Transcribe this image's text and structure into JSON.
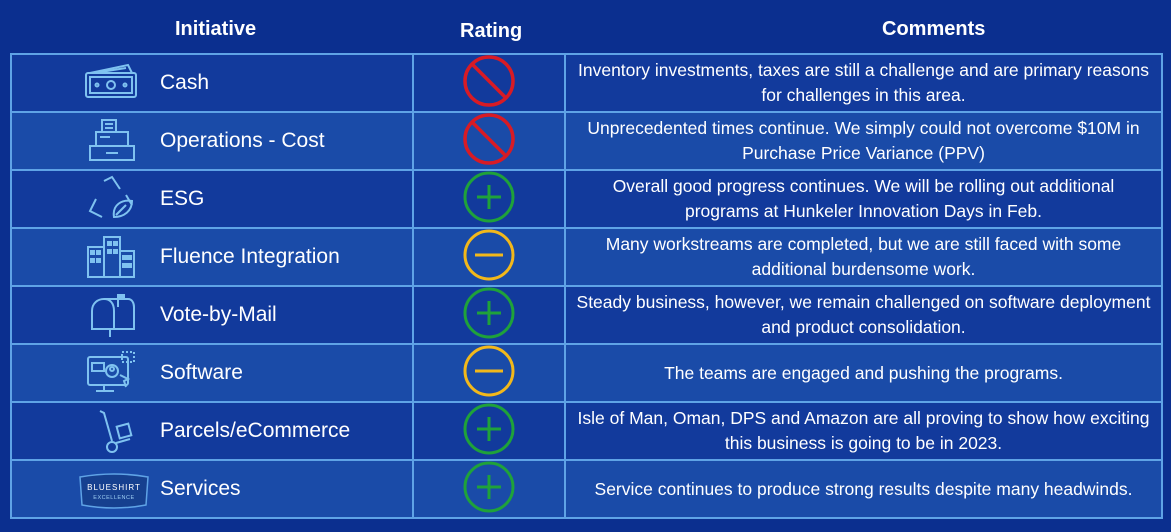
{
  "header": {
    "initiative": "Initiative",
    "rating": "Rating",
    "comments": "Comments"
  },
  "colors": {
    "red": "#d81b25",
    "green": "#1fa23a",
    "yellow": "#f2b81b",
    "line": "#5fa3e6"
  },
  "rows": [
    {
      "initiative": "Cash",
      "icon": "cash-icon",
      "rating": "stop",
      "comment": "Inventory investments, taxes are still a challenge and are primary reasons for challenges in this area."
    },
    {
      "initiative": "Operations - Cost",
      "icon": "cash-register-icon",
      "rating": "stop",
      "comment": "Unprecedented times continue.  We simply could not overcome $10M in Purchase Price Variance (PPV)"
    },
    {
      "initiative": "ESG",
      "icon": "recycle-leaf-icon",
      "rating": "plus",
      "comment": "Overall good progress continues.  We will be rolling out additional programs at Hunkeler Innovation Days in Feb."
    },
    {
      "initiative": "Fluence Integration",
      "icon": "buildings-icon",
      "rating": "minus",
      "comment": "Many workstreams are completed, but we are still faced with some additional burdensome work."
    },
    {
      "initiative": "Vote-by-Mail",
      "icon": "mailbox-icon",
      "rating": "plus",
      "comment": "Steady business, however, we remain challenged on software deployment and product consolidation."
    },
    {
      "initiative": "Software",
      "icon": "software-icon",
      "rating": "minus",
      "comment": "The teams are engaged and pushing the programs."
    },
    {
      "initiative": "Parcels/eCommerce",
      "icon": "hand-truck-icon",
      "rating": "plus",
      "comment": "Isle of Man, Oman, DPS and Amazon are all proving to show how exciting this business is going to be in 2023."
    },
    {
      "initiative": "Services",
      "icon": "blueshirt-excellence-badge",
      "rating": "plus",
      "comment": "Service continues to produce strong results despite many headwinds.",
      "badge_line1": "BLUESHIRT",
      "badge_line2": "EXCELLENCE"
    }
  ]
}
